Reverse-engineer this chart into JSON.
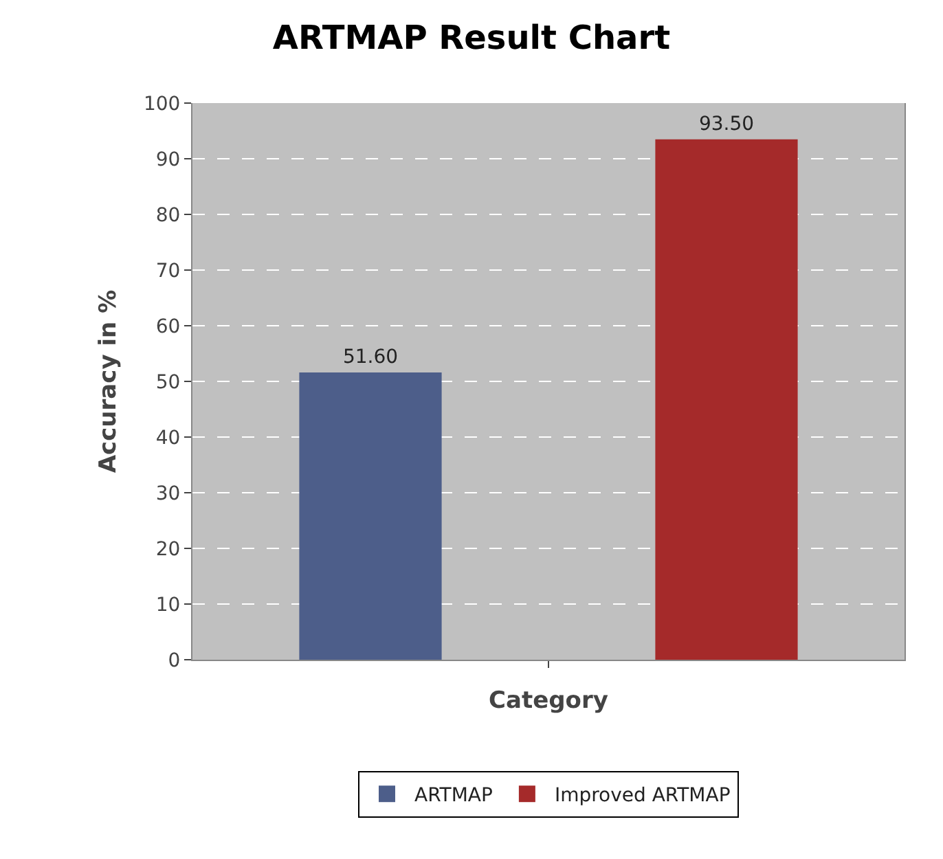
{
  "chart_data": {
    "type": "bar",
    "title": "ARTMAP Result Chart",
    "xlabel": "Category",
    "ylabel": "Accuracy in %",
    "categories": [
      null
    ],
    "series": [
      {
        "name": "ARTMAP",
        "color": "#4d5e8a",
        "values": [
          51.6
        ],
        "value_labels": [
          "51.60"
        ]
      },
      {
        "name": "Improved ARTMAP",
        "color": "#a52a2a",
        "values": [
          93.5
        ],
        "value_labels": [
          "93.50"
        ]
      }
    ],
    "ylim": [
      0,
      100
    ],
    "yticks": [
      0,
      10,
      20,
      30,
      40,
      50,
      60,
      70,
      80,
      90,
      100
    ],
    "grid": "y",
    "legend": "bottom"
  }
}
